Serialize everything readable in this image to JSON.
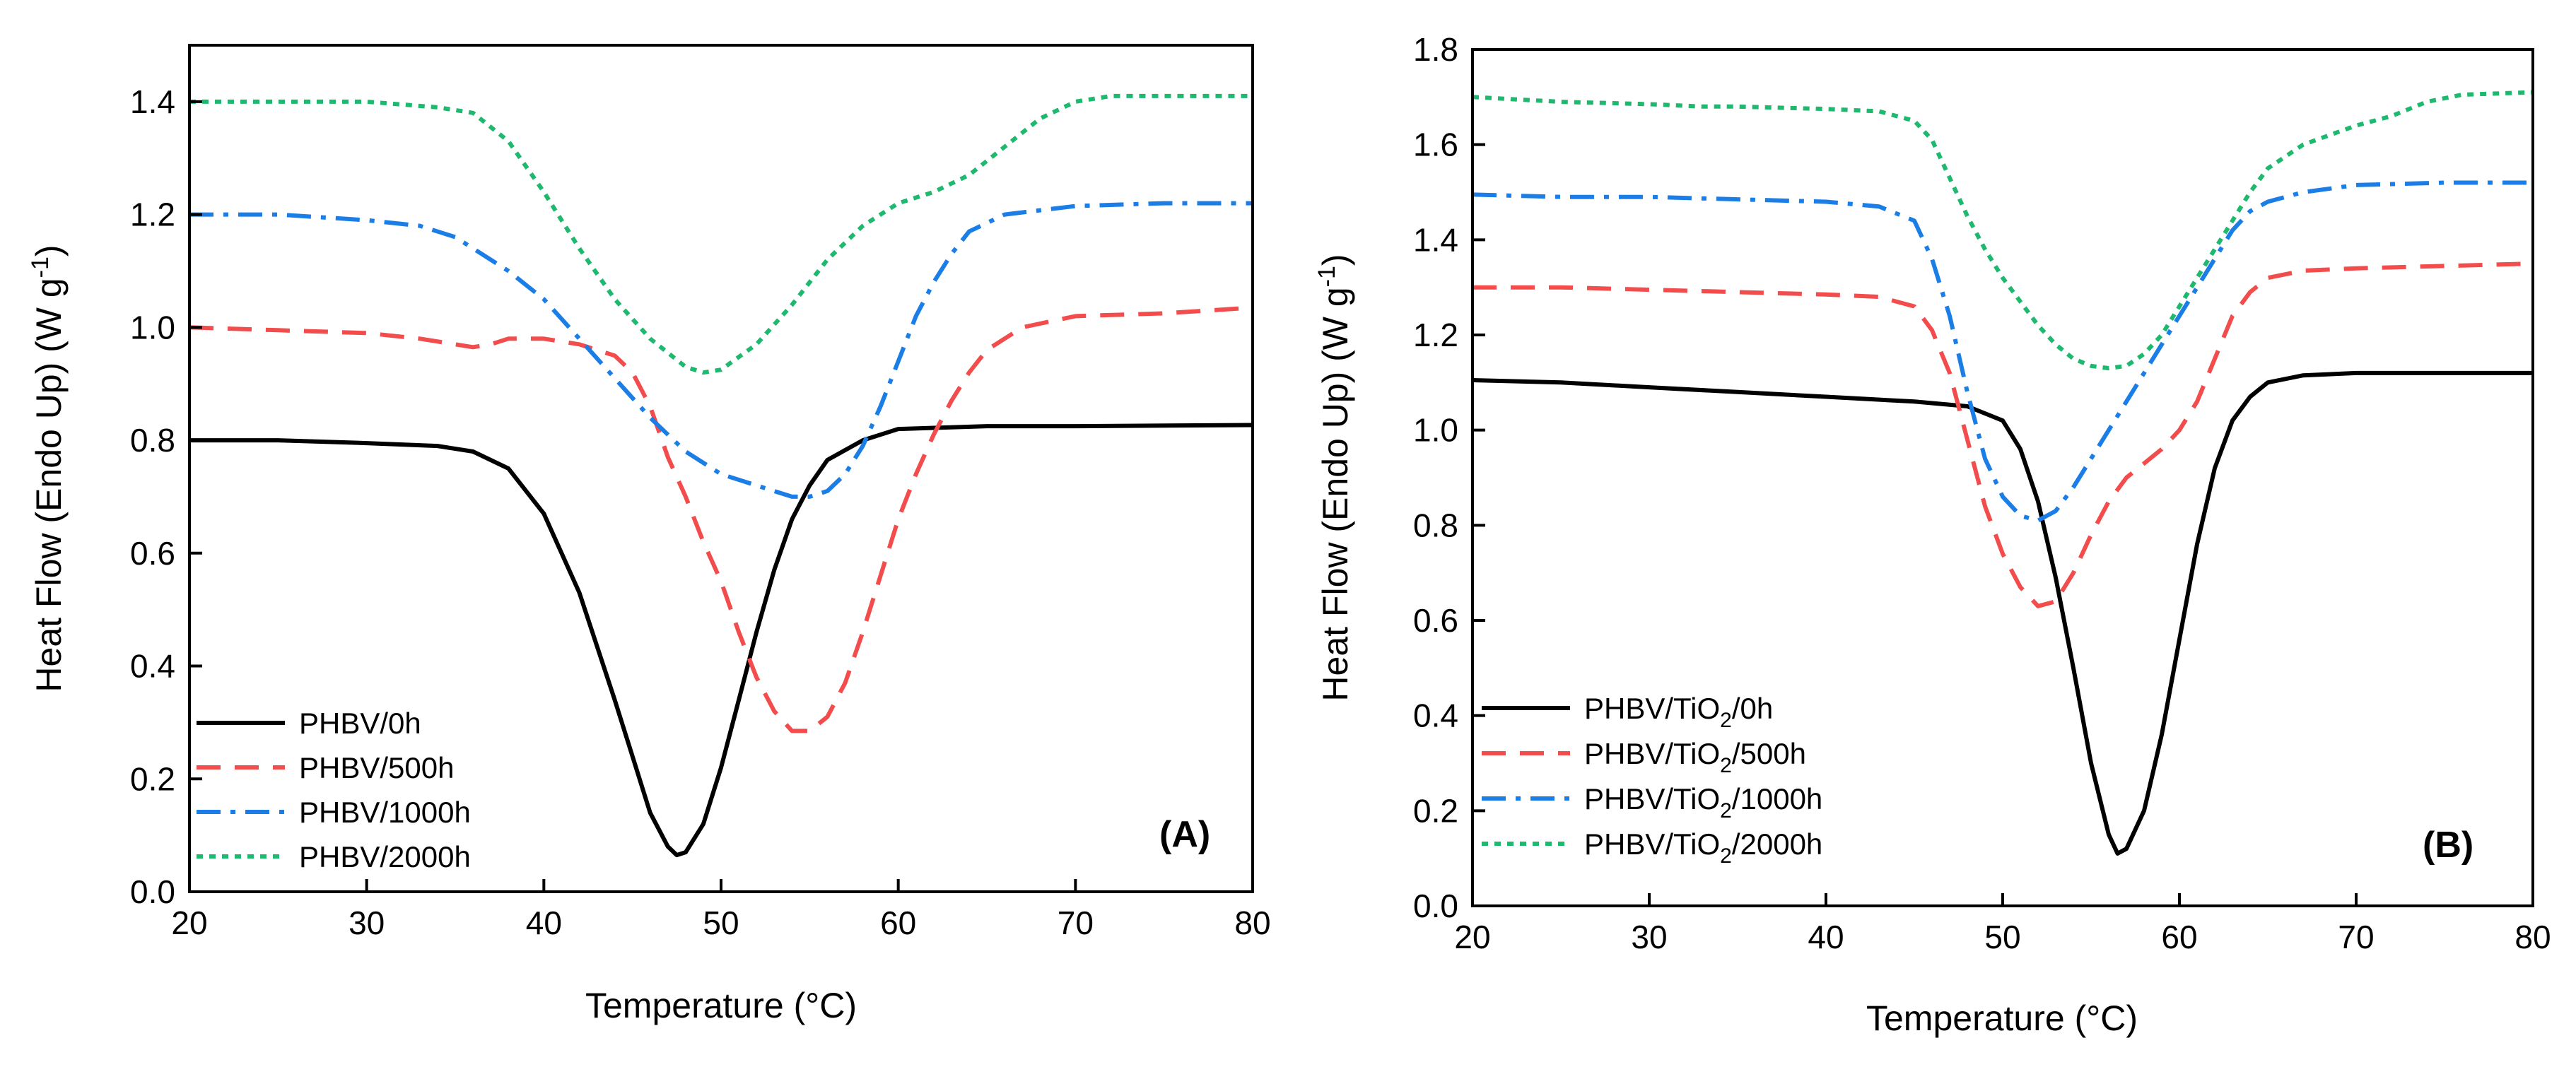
{
  "chart_data": [
    {
      "type": "line",
      "panel_label": "(A)",
      "xlabel": "Temperature (°C)",
      "ylabel": "Heat Flow (Endo Up) (W g",
      "ylabel_sup": "-1",
      "ylabel_close": ")",
      "xlim": [
        20,
        80
      ],
      "ylim": [
        0.0,
        1.5
      ],
      "xticks": [
        20,
        30,
        40,
        50,
        60,
        70,
        80
      ],
      "xtick_labels": [
        "20",
        "30",
        "40",
        "50",
        "60",
        "70",
        "80"
      ],
      "yticks": [
        0.0,
        0.2,
        0.4,
        0.6,
        0.8,
        1.0,
        1.2,
        1.4
      ],
      "ytick_labels": [
        "0.0",
        "0.2",
        "0.4",
        "0.6",
        "0.8",
        "1.0",
        "1.2",
        "1.4"
      ],
      "legend_position": "bottom-left",
      "series": [
        {
          "name": "PHBV/0h",
          "label_main": "PHBV/0h",
          "label_sub": "",
          "label_end": "",
          "color": "#000000",
          "dash": "solid",
          "points": [
            [
              20,
              0.8
            ],
            [
              25,
              0.8
            ],
            [
              30,
              0.795
            ],
            [
              34,
              0.79
            ],
            [
              36,
              0.78
            ],
            [
              38,
              0.75
            ],
            [
              40,
              0.67
            ],
            [
              42,
              0.53
            ],
            [
              44,
              0.34
            ],
            [
              45,
              0.24
            ],
            [
              46,
              0.14
            ],
            [
              47,
              0.08
            ],
            [
              47.5,
              0.065
            ],
            [
              48,
              0.07
            ],
            [
              49,
              0.12
            ],
            [
              50,
              0.22
            ],
            [
              51,
              0.34
            ],
            [
              52,
              0.46
            ],
            [
              53,
              0.57
            ],
            [
              54,
              0.66
            ],
            [
              55,
              0.72
            ],
            [
              56,
              0.765
            ],
            [
              58,
              0.8
            ],
            [
              60,
              0.82
            ],
            [
              65,
              0.825
            ],
            [
              70,
              0.825
            ],
            [
              80,
              0.827
            ]
          ]
        },
        {
          "name": "PHBV/500h",
          "label_main": "PHBV/500h",
          "label_sub": "",
          "label_end": "",
          "color": "#f24c4c",
          "dash": "long",
          "points": [
            [
              20,
              1.0
            ],
            [
              25,
              0.995
            ],
            [
              30,
              0.99
            ],
            [
              33,
              0.98
            ],
            [
              35,
              0.97
            ],
            [
              36,
              0.965
            ],
            [
              37,
              0.97
            ],
            [
              38,
              0.98
            ],
            [
              40,
              0.98
            ],
            [
              42,
              0.97
            ],
            [
              44,
              0.95
            ],
            [
              45,
              0.92
            ],
            [
              46,
              0.86
            ],
            [
              47,
              0.77
            ],
            [
              48,
              0.7
            ],
            [
              49,
              0.62
            ],
            [
              50,
              0.55
            ],
            [
              51,
              0.46
            ],
            [
              52,
              0.38
            ],
            [
              53,
              0.32
            ],
            [
              54,
              0.285
            ],
            [
              55,
              0.285
            ],
            [
              56,
              0.31
            ],
            [
              57,
              0.37
            ],
            [
              58,
              0.46
            ],
            [
              59,
              0.56
            ],
            [
              60,
              0.66
            ],
            [
              61,
              0.74
            ],
            [
              62,
              0.81
            ],
            [
              63,
              0.87
            ],
            [
              64,
              0.92
            ],
            [
              65,
              0.96
            ],
            [
              67,
              1.0
            ],
            [
              70,
              1.02
            ],
            [
              75,
              1.025
            ],
            [
              80,
              1.035
            ]
          ]
        },
        {
          "name": "PHBV/1000h",
          "label_main": "PHBV/1000h",
          "label_sub": "",
          "label_end": "",
          "color": "#1a7ee6",
          "dash": "dashdot",
          "points": [
            [
              20,
              1.2
            ],
            [
              25,
              1.2
            ],
            [
              30,
              1.19
            ],
            [
              33,
              1.18
            ],
            [
              35,
              1.16
            ],
            [
              38,
              1.1
            ],
            [
              40,
              1.05
            ],
            [
              42,
              0.98
            ],
            [
              44,
              0.91
            ],
            [
              46,
              0.84
            ],
            [
              48,
              0.78
            ],
            [
              50,
              0.74
            ],
            [
              52,
              0.72
            ],
            [
              54,
              0.7
            ],
            [
              55,
              0.7
            ],
            [
              56,
              0.71
            ],
            [
              57,
              0.74
            ],
            [
              58,
              0.79
            ],
            [
              59,
              0.86
            ],
            [
              60,
              0.94
            ],
            [
              61,
              1.02
            ],
            [
              62,
              1.08
            ],
            [
              63,
              1.13
            ],
            [
              64,
              1.17
            ],
            [
              66,
              1.2
            ],
            [
              70,
              1.215
            ],
            [
              75,
              1.22
            ],
            [
              80,
              1.22
            ]
          ]
        },
        {
          "name": "PHBV/2000h",
          "label_main": "PHBV/2000h",
          "label_sub": "",
          "label_end": "",
          "color": "#1fb86f",
          "dash": "dotted",
          "points": [
            [
              20,
              1.4
            ],
            [
              25,
              1.4
            ],
            [
              30,
              1.4
            ],
            [
              34,
              1.39
            ],
            [
              36,
              1.38
            ],
            [
              38,
              1.33
            ],
            [
              40,
              1.24
            ],
            [
              42,
              1.14
            ],
            [
              44,
              1.05
            ],
            [
              46,
              0.98
            ],
            [
              48,
              0.93
            ],
            [
              49,
              0.92
            ],
            [
              50,
              0.925
            ],
            [
              52,
              0.97
            ],
            [
              54,
              1.04
            ],
            [
              56,
              1.12
            ],
            [
              58,
              1.18
            ],
            [
              60,
              1.22
            ],
            [
              62,
              1.24
            ],
            [
              64,
              1.27
            ],
            [
              66,
              1.32
            ],
            [
              68,
              1.37
            ],
            [
              70,
              1.4
            ],
            [
              72,
              1.41
            ],
            [
              75,
              1.41
            ],
            [
              80,
              1.41
            ]
          ]
        }
      ]
    },
    {
      "type": "line",
      "panel_label": "(B)",
      "xlabel": "Temperature (°C)",
      "ylabel": "Heat Flow (Endo Up) (W g",
      "ylabel_sup": "-1",
      "ylabel_close": ")",
      "xlim": [
        20,
        80
      ],
      "ylim": [
        0.0,
        1.8
      ],
      "xticks": [
        20,
        30,
        40,
        50,
        60,
        70,
        80
      ],
      "xtick_labels": [
        "20",
        "30",
        "40",
        "50",
        "60",
        "70",
        "80"
      ],
      "yticks": [
        0.0,
        0.2,
        0.4,
        0.6,
        0.8,
        1.0,
        1.2,
        1.4,
        1.6,
        1.8
      ],
      "ytick_labels": [
        "0.0",
        "0.2",
        "0.4",
        "0.6",
        "0.8",
        "1.0",
        "1.2",
        "1.4",
        "1.6",
        "1.8"
      ],
      "legend_position": "bottom-left",
      "series": [
        {
          "name": "PHBV/TiO2/0h",
          "label_main": "PHBV/TiO",
          "label_sub": "2",
          "label_end": "/0h",
          "color": "#000000",
          "dash": "solid",
          "points": [
            [
              20,
              1.105
            ],
            [
              25,
              1.1
            ],
            [
              30,
              1.09
            ],
            [
              35,
              1.08
            ],
            [
              40,
              1.07
            ],
            [
              45,
              1.06
            ],
            [
              48,
              1.05
            ],
            [
              50,
              1.02
            ],
            [
              51,
              0.96
            ],
            [
              52,
              0.85
            ],
            [
              53,
              0.69
            ],
            [
              54,
              0.5
            ],
            [
              55,
              0.3
            ],
            [
              56,
              0.15
            ],
            [
              56.5,
              0.11
            ],
            [
              57,
              0.12
            ],
            [
              58,
              0.2
            ],
            [
              59,
              0.36
            ],
            [
              60,
              0.56
            ],
            [
              61,
              0.76
            ],
            [
              62,
              0.92
            ],
            [
              63,
              1.02
            ],
            [
              64,
              1.07
            ],
            [
              65,
              1.1
            ],
            [
              67,
              1.115
            ],
            [
              70,
              1.12
            ],
            [
              75,
              1.12
            ],
            [
              80,
              1.12
            ]
          ]
        },
        {
          "name": "PHBV/TiO2/500h",
          "label_main": "PHBV/TiO",
          "label_sub": "2",
          "label_end": "/500h",
          "color": "#f24c4c",
          "dash": "long",
          "points": [
            [
              20,
              1.3
            ],
            [
              25,
              1.3
            ],
            [
              30,
              1.295
            ],
            [
              35,
              1.29
            ],
            [
              40,
              1.285
            ],
            [
              43,
              1.28
            ],
            [
              45,
              1.26
            ],
            [
              46,
              1.21
            ],
            [
              47,
              1.12
            ],
            [
              48,
              0.98
            ],
            [
              49,
              0.84
            ],
            [
              50,
              0.74
            ],
            [
              51,
              0.67
            ],
            [
              52,
              0.63
            ],
            [
              53,
              0.64
            ],
            [
              54,
              0.7
            ],
            [
              55,
              0.78
            ],
            [
              56,
              0.85
            ],
            [
              57,
              0.9
            ],
            [
              58,
              0.93
            ],
            [
              59,
              0.96
            ],
            [
              60,
              1.0
            ],
            [
              61,
              1.06
            ],
            [
              62,
              1.15
            ],
            [
              63,
              1.24
            ],
            [
              64,
              1.29
            ],
            [
              65,
              1.32
            ],
            [
              67,
              1.335
            ],
            [
              70,
              1.34
            ],
            [
              75,
              1.345
            ],
            [
              80,
              1.35
            ]
          ]
        },
        {
          "name": "PHBV/TiO2/1000h",
          "label_main": "PHBV/TiO",
          "label_sub": "2",
          "label_end": "/1000h",
          "color": "#1a7ee6",
          "dash": "dashdot",
          "points": [
            [
              20,
              1.495
            ],
            [
              25,
              1.49
            ],
            [
              30,
              1.49
            ],
            [
              35,
              1.485
            ],
            [
              40,
              1.48
            ],
            [
              43,
              1.47
            ],
            [
              45,
              1.44
            ],
            [
              46,
              1.36
            ],
            [
              47,
              1.24
            ],
            [
              48,
              1.08
            ],
            [
              49,
              0.94
            ],
            [
              50,
              0.86
            ],
            [
              51,
              0.82
            ],
            [
              52,
              0.81
            ],
            [
              53,
              0.83
            ],
            [
              54,
              0.88
            ],
            [
              55,
              0.94
            ],
            [
              56,
              1.0
            ],
            [
              57,
              1.06
            ],
            [
              58,
              1.12
            ],
            [
              59,
              1.18
            ],
            [
              60,
              1.24
            ],
            [
              61,
              1.3
            ],
            [
              62,
              1.36
            ],
            [
              63,
              1.42
            ],
            [
              64,
              1.46
            ],
            [
              65,
              1.48
            ],
            [
              67,
              1.5
            ],
            [
              70,
              1.515
            ],
            [
              75,
              1.52
            ],
            [
              80,
              1.52
            ]
          ]
        },
        {
          "name": "PHBV/TiO2/2000h",
          "label_main": "PHBV/TiO",
          "label_sub": "2",
          "label_end": "/2000h",
          "color": "#1fb86f",
          "dash": "dotted",
          "points": [
            [
              20,
              1.7
            ],
            [
              25,
              1.69
            ],
            [
              30,
              1.685
            ],
            [
              33,
              1.68
            ],
            [
              35,
              1.68
            ],
            [
              40,
              1.675
            ],
            [
              43,
              1.67
            ],
            [
              45,
              1.65
            ],
            [
              46,
              1.61
            ],
            [
              47,
              1.53
            ],
            [
              48,
              1.45
            ],
            [
              49,
              1.38
            ],
            [
              50,
              1.32
            ],
            [
              51,
              1.27
            ],
            [
              52,
              1.22
            ],
            [
              53,
              1.18
            ],
            [
              54,
              1.15
            ],
            [
              55,
              1.135
            ],
            [
              56,
              1.13
            ],
            [
              57,
              1.135
            ],
            [
              58,
              1.16
            ],
            [
              59,
              1.2
            ],
            [
              60,
              1.26
            ],
            [
              61,
              1.32
            ],
            [
              62,
              1.38
            ],
            [
              63,
              1.44
            ],
            [
              64,
              1.5
            ],
            [
              65,
              1.55
            ],
            [
              67,
              1.6
            ],
            [
              70,
              1.64
            ],
            [
              72,
              1.66
            ],
            [
              74,
              1.69
            ],
            [
              76,
              1.705
            ],
            [
              80,
              1.71
            ]
          ]
        }
      ]
    }
  ]
}
